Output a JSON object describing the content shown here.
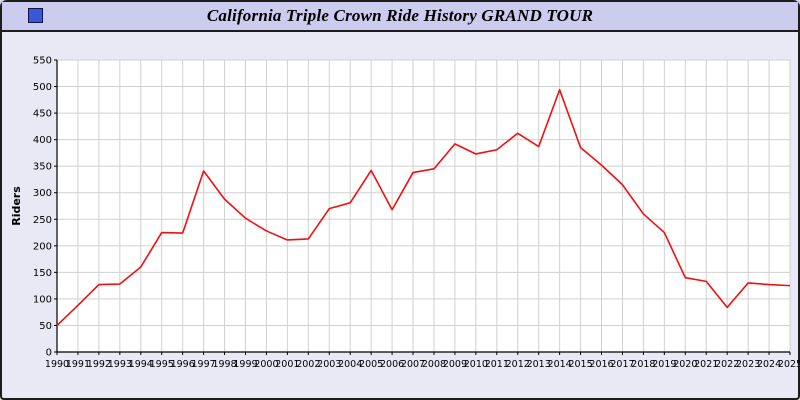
{
  "window": {
    "title": "California Triple Crown Ride History GRAND TOUR"
  },
  "icons": {
    "app_icon": "blue-square-icon"
  },
  "colors": {
    "page_bg": "#e9e9f6",
    "titlebar_bg": "#ccccee",
    "border": "#1c1c1c",
    "icon_blue": "#3a57d8",
    "plot_bg": "#ffffff",
    "grid": "#d0d0d0",
    "axis": "#000000",
    "line": "#f01010"
  },
  "chart_data": {
    "type": "line",
    "title": "California Triple Crown Ride History GRAND TOUR",
    "xlabel": "",
    "ylabel": "Riders",
    "ylim": [
      0,
      550
    ],
    "ytick_step": 50,
    "grid": true,
    "legend_position": "none",
    "line_color": "#f01010",
    "x": [
      1990,
      1991,
      1992,
      1993,
      1994,
      1995,
      1996,
      1997,
      1998,
      1999,
      2000,
      2001,
      2002,
      2003,
      2004,
      2005,
      2006,
      2007,
      2008,
      2009,
      2010,
      2011,
      2012,
      2013,
      2014,
      2015,
      2016,
      2017,
      2018,
      2019,
      2020,
      2021,
      2022,
      2023,
      2024,
      2025
    ],
    "values": [
      50,
      88,
      127,
      128,
      160,
      225,
      224,
      341,
      288,
      252,
      228,
      211,
      213,
      270,
      281,
      342,
      268,
      338,
      345,
      392,
      373,
      381,
      412,
      387,
      494,
      385,
      352,
      315,
      260,
      225,
      140,
      133,
      84,
      130,
      127,
      125
    ]
  }
}
